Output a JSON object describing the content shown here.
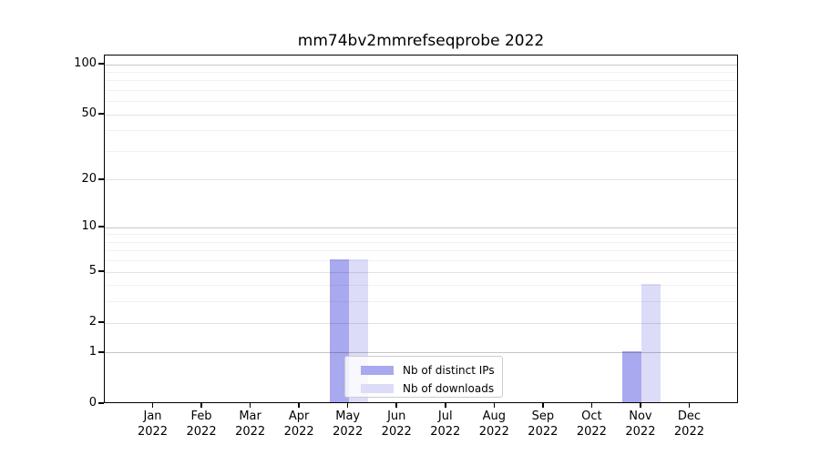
{
  "title": "mm74bv2mmrefseqprobe 2022",
  "chart_data": {
    "type": "bar",
    "title": "mm74bv2mmrefseqprobe 2022",
    "categories": [
      "Jan",
      "Feb",
      "Mar",
      "Apr",
      "May",
      "Jun",
      "Jul",
      "Aug",
      "Sep",
      "Oct",
      "Nov",
      "Dec"
    ],
    "year": "2022",
    "series": [
      {
        "name": "Nb of distinct IPs",
        "color": "#a9a9ef",
        "values": [
          0,
          0,
          0,
          0,
          6,
          0,
          0,
          0,
          0,
          0,
          1,
          0
        ]
      },
      {
        "name": "Nb of downloads",
        "color": "#dcdcf8",
        "values": [
          0,
          0,
          0,
          0,
          6,
          0,
          0,
          0,
          0,
          0,
          4,
          0
        ]
      }
    ],
    "yscale": "log1p",
    "ylim": [
      0,
      113
    ],
    "y_tick_labels": [
      "0",
      "1",
      "2",
      "5",
      "10",
      "20",
      "50",
      "100"
    ],
    "y_ticks": [
      0,
      1,
      2,
      5,
      10,
      20,
      50,
      100
    ],
    "y_mid_gridlines": [
      2,
      5,
      20,
      50
    ],
    "y_major_gridlines": [
      1,
      10,
      100
    ],
    "y_minor_gridlines": [
      3,
      4,
      6,
      7,
      8,
      9,
      30,
      40,
      60,
      70,
      80,
      90
    ],
    "grid": "horizontal",
    "legend_position": "inside-bottom-center"
  }
}
